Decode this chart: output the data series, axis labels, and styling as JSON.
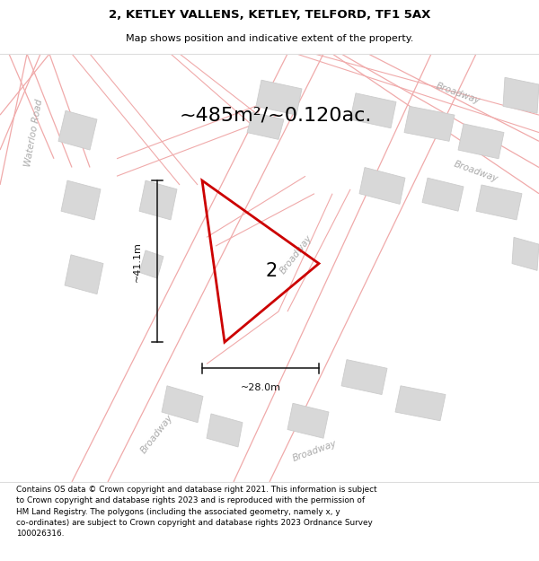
{
  "title_line1": "2, KETLEY VALLENS, KETLEY, TELFORD, TF1 5AX",
  "title_line2": "Map shows position and indicative extent of the property.",
  "area_text": "~485m²/~0.120ac.",
  "dim_vertical": "~41.1m",
  "dim_horizontal": "~28.0m",
  "property_label": "2",
  "footer_wrapped": "Contains OS data © Crown copyright and database right 2021. This information is subject\nto Crown copyright and database rights 2023 and is reproduced with the permission of\nHM Land Registry. The polygons (including the associated geometry, namely x, y\nco-ordinates) are subject to Crown copyright and database rights 2023 Ordnance Survey\n100026316.",
  "map_bg": "#ffffff",
  "road_line_color": "#f0aaaa",
  "building_face": "#d8d8d8",
  "building_edge": "#cccccc",
  "red_poly_color": "#cc0000",
  "label_color": "#aaaaaa",
  "waterloo_label_color": "#aaaaaa",
  "dim_color": "#111111"
}
